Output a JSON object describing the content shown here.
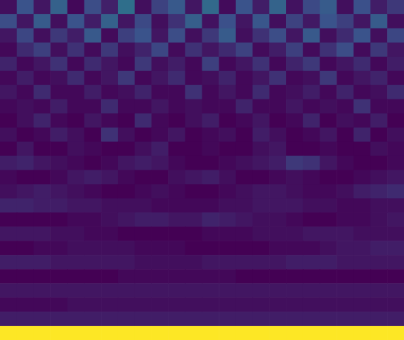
{
  "chart_data": {
    "type": "heatmap",
    "tick_labels": false,
    "cells": [
      [
        0.1,
        0.3,
        0.12,
        0.35,
        0.08,
        0.28,
        0.15,
        0.4,
        0.1,
        0.25,
        0.32,
        0.12,
        0.38,
        0.09,
        0.3,
        0.14,
        0.36,
        0.11,
        0.27,
        0.33,
        0.1,
        0.29,
        0.14,
        0.22
      ],
      [
        0.28,
        0.12,
        0.33,
        0.1,
        0.3,
        0.14,
        0.35,
        0.12,
        0.27,
        0.1,
        0.2,
        0.34,
        0.11,
        0.29,
        0.12,
        0.31,
        0.1,
        0.25,
        0.13,
        0.3,
        0.24,
        0.12,
        0.33,
        0.1
      ],
      [
        0.12,
        0.26,
        0.1,
        0.22,
        0.14,
        0.32,
        0.09,
        0.24,
        0.3,
        0.12,
        0.28,
        0.1,
        0.22,
        0.33,
        0.1,
        0.2,
        0.28,
        0.12,
        0.32,
        0.1,
        0.18,
        0.3,
        0.1,
        0.26
      ],
      [
        0.08,
        0.18,
        0.24,
        0.1,
        0.2,
        0.09,
        0.22,
        0.1,
        0.16,
        0.26,
        0.09,
        0.2,
        0.12,
        0.18,
        0.25,
        0.09,
        0.14,
        0.24,
        0.09,
        0.2,
        0.28,
        0.09,
        0.22,
        0.12
      ],
      [
        0.16,
        0.08,
        0.12,
        0.2,
        0.08,
        0.18,
        0.12,
        0.08,
        0.22,
        0.1,
        0.14,
        0.08,
        0.24,
        0.08,
        0.12,
        0.2,
        0.08,
        0.16,
        0.22,
        0.08,
        0.12,
        0.18,
        0.08,
        0.14
      ],
      [
        0.08,
        0.14,
        0.08,
        0.1,
        0.18,
        0.08,
        0.12,
        0.22,
        0.08,
        0.12,
        0.18,
        0.08,
        0.1,
        0.16,
        0.08,
        0.12,
        0.2,
        0.08,
        0.1,
        0.22,
        0.08,
        0.12,
        0.16,
        0.08
      ],
      [
        0.12,
        0.08,
        0.18,
        0.08,
        0.08,
        0.14,
        0.08,
        0.1,
        0.16,
        0.08,
        0.08,
        0.2,
        0.08,
        0.12,
        0.08,
        0.18,
        0.08,
        0.1,
        0.14,
        0.08,
        0.16,
        0.08,
        0.1,
        0.18
      ],
      [
        0.08,
        0.1,
        0.08,
        0.14,
        0.08,
        0.08,
        0.18,
        0.08,
        0.08,
        0.12,
        0.08,
        0.1,
        0.08,
        0.08,
        0.16,
        0.08,
        0.08,
        0.12,
        0.08,
        0.1,
        0.08,
        0.2,
        0.08,
        0.08
      ],
      [
        0.06,
        0.1,
        0.16,
        0.08,
        0.06,
        0.12,
        0.08,
        0.06,
        0.18,
        0.08,
        0.06,
        0.1,
        0.14,
        0.06,
        0.08,
        0.12,
        0.06,
        0.08,
        0.16,
        0.06,
        0.1,
        0.08,
        0.14,
        0.06
      ],
      [
        0.1,
        0.06,
        0.08,
        0.14,
        0.1,
        0.06,
        0.2,
        0.1,
        0.06,
        0.08,
        0.12,
        0.06,
        0.08,
        0.1,
        0.06,
        0.14,
        0.1,
        0.06,
        0.08,
        0.12,
        0.06,
        0.16,
        0.06,
        0.1
      ],
      [
        0.06,
        0.12,
        0.06,
        0.06,
        0.1,
        0.08,
        0.06,
        0.06,
        0.1,
        0.14,
        0.06,
        0.06,
        0.08,
        0.06,
        0.06,
        0.1,
        0.12,
        0.06,
        0.06,
        0.08,
        0.06,
        0.06,
        0.1,
        0.08
      ],
      [
        0.14,
        0.16,
        0.12,
        0.1,
        0.08,
        0.06,
        0.08,
        0.12,
        0.14,
        0.12,
        0.08,
        0.06,
        0.06,
        0.08,
        0.1,
        0.12,
        0.14,
        0.22,
        0.2,
        0.12,
        0.08,
        0.06,
        0.06,
        0.08
      ],
      [
        0.08,
        0.06,
        0.06,
        0.08,
        0.12,
        0.14,
        0.12,
        0.08,
        0.06,
        0.06,
        0.1,
        0.12,
        0.14,
        0.1,
        0.06,
        0.06,
        0.08,
        0.1,
        0.08,
        0.06,
        0.06,
        0.08,
        0.1,
        0.12
      ],
      [
        0.1,
        0.12,
        0.14,
        0.12,
        0.1,
        0.08,
        0.06,
        0.06,
        0.08,
        0.1,
        0.08,
        0.06,
        0.06,
        0.08,
        0.1,
        0.12,
        0.12,
        0.1,
        0.08,
        0.08,
        0.1,
        0.14,
        0.16,
        0.18
      ],
      [
        0.16,
        0.16,
        0.14,
        0.14,
        0.12,
        0.12,
        0.1,
        0.1,
        0.1,
        0.08,
        0.08,
        0.08,
        0.08,
        0.1,
        0.1,
        0.12,
        0.12,
        0.12,
        0.1,
        0.1,
        0.08,
        0.08,
        0.1,
        0.1
      ],
      [
        0.06,
        0.06,
        0.06,
        0.06,
        0.08,
        0.08,
        0.1,
        0.12,
        0.14,
        0.14,
        0.12,
        0.12,
        0.16,
        0.14,
        0.12,
        0.1,
        0.1,
        0.08,
        0.06,
        0.06,
        0.08,
        0.08,
        0.1,
        0.12
      ],
      [
        0.12,
        0.12,
        0.12,
        0.1,
        0.1,
        0.08,
        0.08,
        0.06,
        0.06,
        0.06,
        0.06,
        0.06,
        0.08,
        0.08,
        0.08,
        0.1,
        0.1,
        0.1,
        0.12,
        0.12,
        0.12,
        0.1,
        0.1,
        0.1
      ],
      [
        0.06,
        0.06,
        0.08,
        0.08,
        0.1,
        0.1,
        0.1,
        0.1,
        0.08,
        0.08,
        0.08,
        0.06,
        0.06,
        0.06,
        0.06,
        0.06,
        0.08,
        0.08,
        0.08,
        0.1,
        0.12,
        0.12,
        0.14,
        0.14
      ],
      [
        0.14,
        0.14,
        0.14,
        0.12,
        0.12,
        0.12,
        0.12,
        0.12,
        0.1,
        0.1,
        0.1,
        0.1,
        0.12,
        0.12,
        0.12,
        0.12,
        0.12,
        0.14,
        0.14,
        0.14,
        0.12,
        0.12,
        0.12,
        0.12
      ],
      [
        0.06,
        0.06,
        0.06,
        0.06,
        0.06,
        0.06,
        0.06,
        0.08,
        0.08,
        0.08,
        0.08,
        0.08,
        0.08,
        0.08,
        0.06,
        0.06,
        0.06,
        0.06,
        0.06,
        0.06,
        0.06,
        0.06,
        0.06,
        0.06
      ],
      [
        0.12,
        0.12,
        0.12,
        0.12,
        0.12,
        0.12,
        0.12,
        0.12,
        0.12,
        0.12,
        0.12,
        0.12,
        0.12,
        0.12,
        0.12,
        0.12,
        0.12,
        0.12,
        0.12,
        0.12,
        0.12,
        0.12,
        0.12,
        0.12
      ],
      [
        0.08,
        0.08,
        0.08,
        0.08,
        0.1,
        0.1,
        0.1,
        0.1,
        0.1,
        0.1,
        0.1,
        0.1,
        0.1,
        0.1,
        0.1,
        0.1,
        0.1,
        0.1,
        0.1,
        0.1,
        0.1,
        0.1,
        0.1,
        0.1
      ],
      [
        0.14,
        0.14,
        0.14,
        0.14,
        0.14,
        0.14,
        0.14,
        0.14,
        0.14,
        0.14,
        0.14,
        0.14,
        0.14,
        0.14,
        0.14,
        0.14,
        0.14,
        0.14,
        0.14,
        0.14,
        0.14,
        0.14,
        0.14,
        0.14
      ],
      [
        1.0,
        1.0,
        1.0,
        1.0,
        1.0,
        1.0,
        1.0,
        1.0,
        1.0,
        1.0,
        1.0,
        1.0,
        1.0,
        1.0,
        1.0,
        1.0,
        1.0,
        1.0,
        1.0,
        1.0,
        1.0,
        1.0,
        1.0,
        1.0
      ]
    ]
  }
}
